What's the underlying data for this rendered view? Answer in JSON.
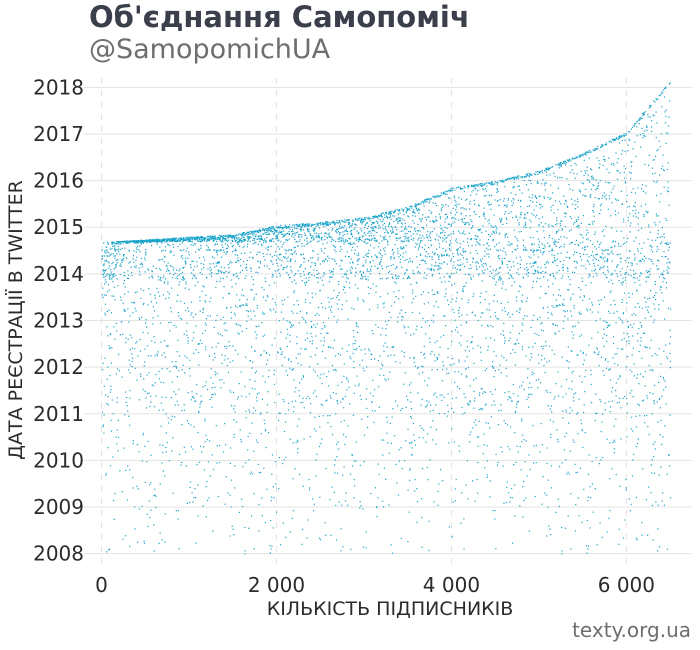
{
  "header": {
    "title": "Об'єднання Самопоміч",
    "subtitle": "@SamopomichUA"
  },
  "footer": {
    "source": "texty.org.ua"
  },
  "chart_data": {
    "type": "scatter",
    "xlabel": "КІЛЬКІСТЬ ПІДПИСНИКІВ",
    "ylabel": "ДАТА РЕЄСТРАЦІЇ В TWITTER",
    "xlim": [
      -200,
      6750
    ],
    "ylim": [
      2007.65,
      2018.2
    ],
    "x_ticks": [
      {
        "value": 0,
        "label": "0"
      },
      {
        "value": 2000,
        "label": "2 000"
      },
      {
        "value": 4000,
        "label": "4 000"
      },
      {
        "value": 6000,
        "label": "6 000"
      }
    ],
    "y_ticks": [
      {
        "value": 2008,
        "label": "2008"
      },
      {
        "value": 2009,
        "label": "2009"
      },
      {
        "value": 2010,
        "label": "2010"
      },
      {
        "value": 2011,
        "label": "2011"
      },
      {
        "value": 2012,
        "label": "2012"
      },
      {
        "value": 2013,
        "label": "2013"
      },
      {
        "value": 2014,
        "label": "2014"
      },
      {
        "value": 2015,
        "label": "2015"
      },
      {
        "value": 2016,
        "label": "2016"
      },
      {
        "value": 2017,
        "label": "2017"
      },
      {
        "value": 2018,
        "label": "2018"
      }
    ],
    "grid": {
      "x": "dashed",
      "y": "solid"
    },
    "point_color": "#1aa3c9",
    "total_followers": 6500,
    "frontier": [
      {
        "x": 0,
        "y": 2014.68
      },
      {
        "x": 1000,
        "y": 2014.8
      },
      {
        "x": 1500,
        "y": 2014.85
      },
      {
        "x": 2000,
        "y": 2015.05
      },
      {
        "x": 2500,
        "y": 2015.12
      },
      {
        "x": 3000,
        "y": 2015.22
      },
      {
        "x": 3500,
        "y": 2015.45
      },
      {
        "x": 4000,
        "y": 2015.85
      },
      {
        "x": 4500,
        "y": 2016.0
      },
      {
        "x": 5000,
        "y": 2016.22
      },
      {
        "x": 5500,
        "y": 2016.6
      },
      {
        "x": 6000,
        "y": 2017.05
      },
      {
        "x": 6500,
        "y": 2018.15
      }
    ],
    "registration_distribution": [
      {
        "from": 2008.0,
        "to": 2009.0,
        "share": 0.02
      },
      {
        "from": 2009.0,
        "to": 2010.0,
        "share": 0.04
      },
      {
        "from": 2010.0,
        "to": 2011.0,
        "share": 0.06
      },
      {
        "from": 2011.0,
        "to": 2012.0,
        "share": 0.09
      },
      {
        "from": 2012.0,
        "to": 2013.0,
        "share": 0.1
      },
      {
        "from": 2013.0,
        "to": 2013.9,
        "share": 0.1
      },
      {
        "from": 2013.9,
        "to": 2014.7,
        "share": 0.25
      },
      {
        "from": 2014.7,
        "to": 2018.2,
        "share": 0.34
      }
    ]
  }
}
